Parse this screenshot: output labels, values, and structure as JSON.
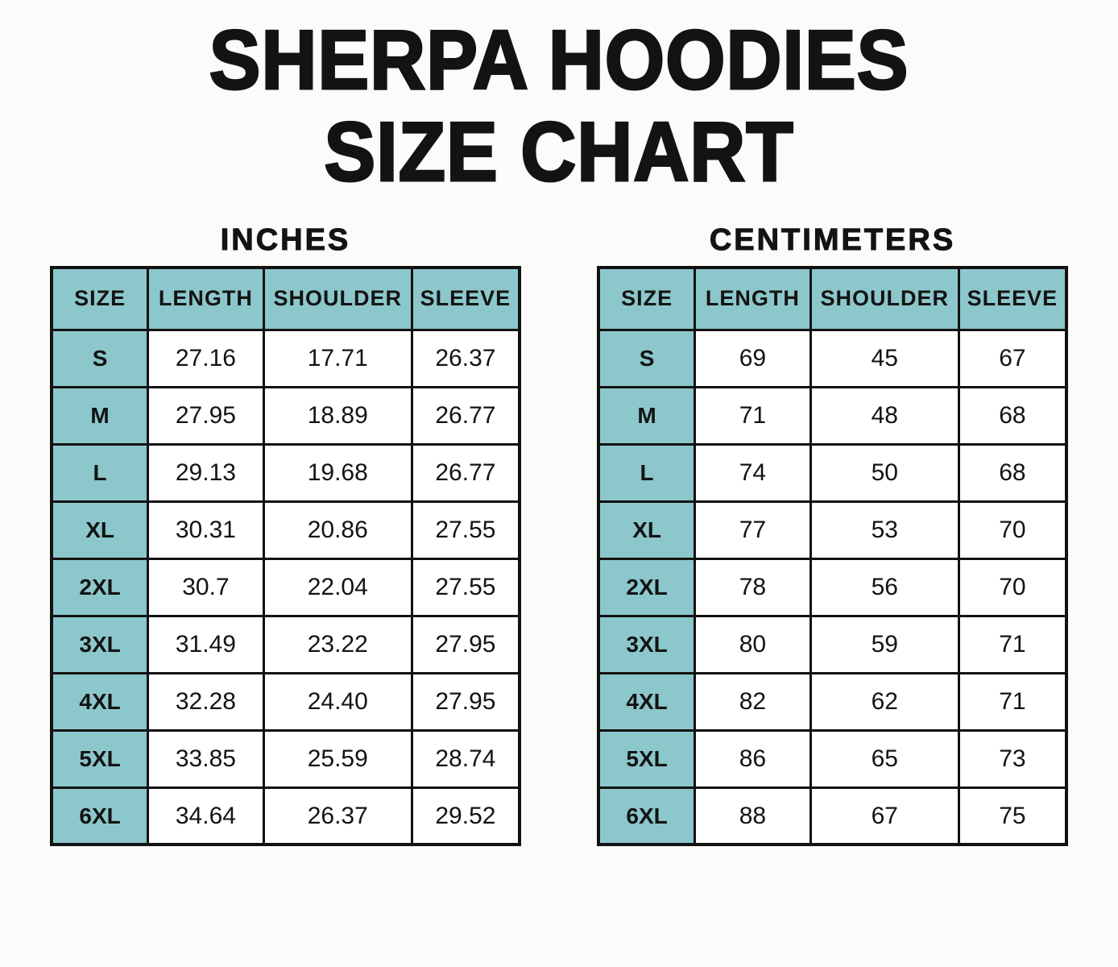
{
  "title": {
    "line1": "SHERPA HOODIES",
    "line2": "SIZE CHART"
  },
  "colors": {
    "header_fill": "#8cc7cc",
    "border": "#121212",
    "text": "#131313",
    "page_background": "#fbfbfa"
  },
  "chart_data": [
    {
      "type": "table",
      "title": "INCHES",
      "columns": [
        "SIZE",
        "LENGTH",
        "SHOULDER",
        "SLEEVE"
      ],
      "rows": [
        [
          "S",
          "27.16",
          "17.71",
          "26.37"
        ],
        [
          "M",
          "27.95",
          "18.89",
          "26.77"
        ],
        [
          "L",
          "29.13",
          "19.68",
          "26.77"
        ],
        [
          "XL",
          "30.31",
          "20.86",
          "27.55"
        ],
        [
          "2XL",
          "30.7",
          "22.04",
          "27.55"
        ],
        [
          "3XL",
          "31.49",
          "23.22",
          "27.95"
        ],
        [
          "4XL",
          "32.28",
          "24.40",
          "27.95"
        ],
        [
          "5XL",
          "33.85",
          "25.59",
          "28.74"
        ],
        [
          "6XL",
          "34.64",
          "26.37",
          "29.52"
        ]
      ]
    },
    {
      "type": "table",
      "title": "CENTIMETERS",
      "columns": [
        "SIZE",
        "LENGTH",
        "SHOULDER",
        "SLEEVE"
      ],
      "rows": [
        [
          "S",
          "69",
          "45",
          "67"
        ],
        [
          "M",
          "71",
          "48",
          "68"
        ],
        [
          "L",
          "74",
          "50",
          "68"
        ],
        [
          "XL",
          "77",
          "53",
          "70"
        ],
        [
          "2XL",
          "78",
          "56",
          "70"
        ],
        [
          "3XL",
          "80",
          "59",
          "71"
        ],
        [
          "4XL",
          "82",
          "62",
          "71"
        ],
        [
          "5XL",
          "86",
          "65",
          "73"
        ],
        [
          "6XL",
          "88",
          "67",
          "75"
        ]
      ]
    }
  ]
}
